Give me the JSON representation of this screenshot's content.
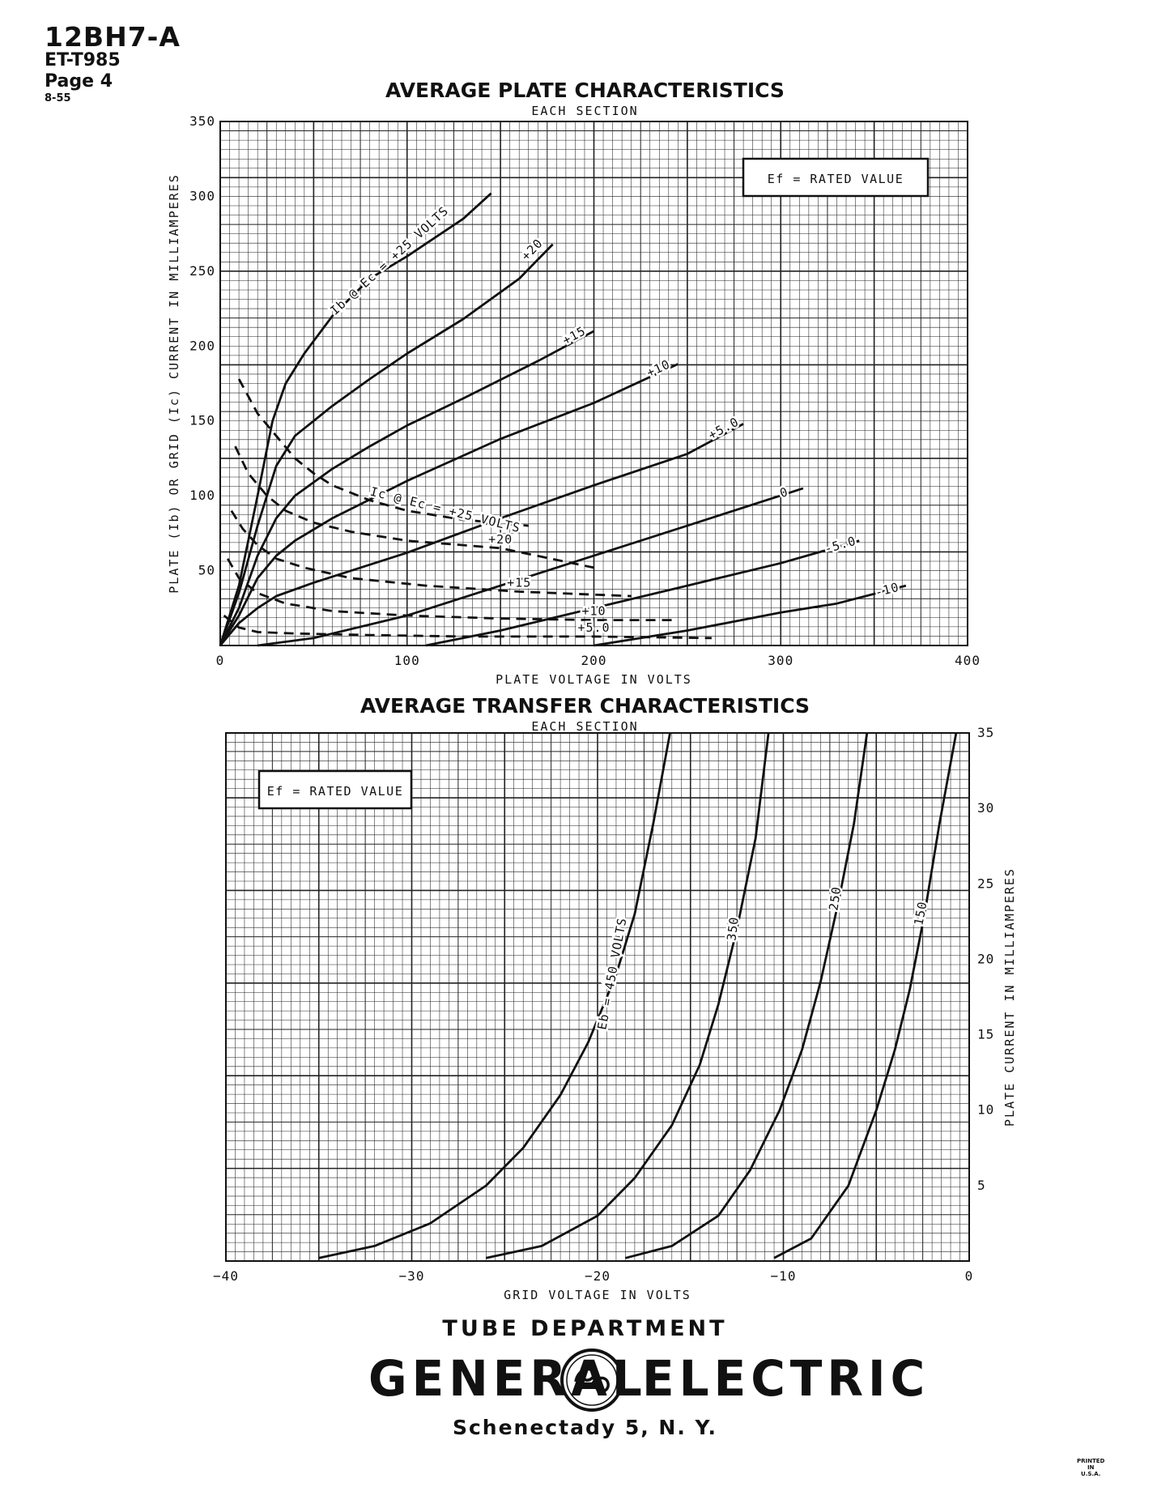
{
  "header": {
    "model": "12BH7-A",
    "code": "ET-T985",
    "page": "Page 4",
    "date": "8-55"
  },
  "chart_data": [
    {
      "type": "line",
      "title": "AVERAGE PLATE CHARACTERISTICS",
      "subtitle": "EACH SECTION",
      "xlabel": "PLATE VOLTAGE IN VOLTS",
      "ylabel": "PLATE (Ib) OR GRID (Ic) CURRENT IN MILLIAMPERES",
      "xlim": [
        0,
        400
      ],
      "ylim": [
        0,
        350
      ],
      "xticks": [
        0,
        100,
        200,
        300,
        400
      ],
      "yticks": [
        50,
        100,
        150,
        200,
        250,
        300,
        350
      ],
      "grid": true,
      "note": "Ef = RATED VALUE",
      "series": [
        {
          "name": "Ib @ Ec = +25 VOLTS",
          "label": "Ib @ Ec = +25 VOLTS",
          "style": "solid",
          "x": [
            0,
            10,
            20,
            28,
            35,
            45,
            60,
            80,
            100,
            130,
            145
          ],
          "y": [
            0,
            40,
            100,
            150,
            175,
            195,
            220,
            245,
            260,
            285,
            302
          ]
        },
        {
          "name": "+20",
          "label": "+20",
          "style": "solid",
          "x": [
            0,
            10,
            20,
            30,
            40,
            60,
            80,
            100,
            130,
            160,
            178
          ],
          "y": [
            0,
            35,
            80,
            120,
            140,
            160,
            178,
            195,
            218,
            245,
            268
          ]
        },
        {
          "name": "+15",
          "label": "+15",
          "style": "solid",
          "x": [
            0,
            10,
            20,
            30,
            40,
            60,
            80,
            100,
            130,
            170,
            200
          ],
          "y": [
            0,
            25,
            60,
            85,
            100,
            118,
            133,
            147,
            165,
            190,
            210
          ]
        },
        {
          "name": "+10",
          "label": "+10",
          "style": "solid",
          "x": [
            0,
            10,
            20,
            30,
            40,
            60,
            100,
            150,
            200,
            245
          ],
          "y": [
            0,
            20,
            45,
            60,
            70,
            85,
            110,
            138,
            162,
            188
          ]
        },
        {
          "name": "+5.0",
          "label": "+5.0",
          "style": "solid",
          "x": [
            0,
            10,
            20,
            30,
            50,
            100,
            150,
            200,
            250,
            280
          ],
          "y": [
            0,
            15,
            25,
            33,
            42,
            62,
            85,
            107,
            128,
            148
          ]
        },
        {
          "name": "0",
          "label": "0",
          "style": "solid",
          "x": [
            20,
            50,
            100,
            150,
            200,
            250,
            312
          ],
          "y": [
            0,
            5,
            20,
            40,
            60,
            80,
            105
          ]
        },
        {
          "name": "-5.0",
          "label": "-5.0",
          "style": "solid",
          "x": [
            110,
            150,
            200,
            250,
            300,
            342
          ],
          "y": [
            0,
            10,
            25,
            40,
            55,
            70
          ]
        },
        {
          "name": "-10",
          "label": "-10",
          "style": "solid",
          "x": [
            200,
            250,
            300,
            330,
            367
          ],
          "y": [
            0,
            10,
            22,
            28,
            40
          ]
        },
        {
          "name": "Ic @ Ec = +25 VOLTS",
          "label": "Ic @ Ec = +25 VOLTS",
          "style": "dashed",
          "x": [
            10,
            20,
            30,
            40,
            50,
            60,
            80,
            100,
            130,
            165
          ],
          "y": [
            178,
            155,
            140,
            125,
            115,
            107,
            97,
            90,
            84,
            80
          ]
        },
        {
          "name": "Ic +20",
          "label": "+20",
          "style": "dashed",
          "x": [
            8,
            15,
            25,
            35,
            50,
            70,
            100,
            150,
            200
          ],
          "y": [
            133,
            115,
            100,
            90,
            82,
            76,
            70,
            65,
            52
          ]
        },
        {
          "name": "Ic +15",
          "label": "+15",
          "style": "dashed",
          "x": [
            6,
            12,
            20,
            30,
            45,
            70,
            110,
            160,
            220
          ],
          "y": [
            90,
            78,
            67,
            58,
            52,
            45,
            40,
            36,
            33
          ]
        },
        {
          "name": "Ic +10",
          "label": "+10",
          "style": "dashed",
          "x": [
            4,
            10,
            20,
            35,
            60,
            100,
            150,
            200,
            243
          ],
          "y": [
            58,
            45,
            35,
            28,
            23,
            20,
            18,
            17,
            17
          ]
        },
        {
          "name": "Ic +5.0",
          "label": "+5.0",
          "style": "dashed",
          "x": [
            2,
            10,
            20,
            40,
            80,
            130,
            200,
            263
          ],
          "y": [
            20,
            12,
            9,
            8,
            7,
            6,
            6,
            5
          ]
        }
      ]
    },
    {
      "type": "line",
      "title": "AVERAGE TRANSFER CHARACTERISTICS",
      "subtitle": "EACH SECTION",
      "xlabel": "GRID VOLTAGE IN VOLTS",
      "ylabel": "PLATE CURRENT IN MILLIAMPERES",
      "xlim": [
        -40,
        0
      ],
      "ylim": [
        0,
        35
      ],
      "xticks": [
        -40,
        -30,
        -20,
        -10,
        0
      ],
      "yticks": [
        5,
        10,
        15,
        20,
        25,
        30,
        35
      ],
      "grid": true,
      "note": "Ef = RATED VALUE",
      "series": [
        {
          "name": "Eb = 450 VOLTS",
          "label": "Eb = 450 VOLTS",
          "x": [
            -35,
            -32,
            -29,
            -26,
            -24,
            -22,
            -20.5,
            -19,
            -18,
            -17,
            -16.1
          ],
          "y": [
            0.2,
            1,
            2.5,
            5,
            7.5,
            11,
            14.5,
            19,
            23,
            29,
            35
          ]
        },
        {
          "name": "350",
          "label": "350",
          "x": [
            -26,
            -23,
            -20,
            -18,
            -16,
            -14.5,
            -13.5,
            -12.5,
            -11.5,
            -10.8
          ],
          "y": [
            0.2,
            1,
            3,
            5.5,
            9,
            13,
            17,
            22,
            28,
            35
          ]
        },
        {
          "name": "250",
          "label": "250",
          "x": [
            -18.5,
            -16,
            -13.5,
            -11.8,
            -10.2,
            -9,
            -8,
            -7,
            -6.2,
            -5.5
          ],
          "y": [
            0.2,
            1,
            3,
            6,
            10,
            14,
            18.5,
            24,
            29,
            35
          ]
        },
        {
          "name": "150",
          "label": "150",
          "x": [
            -10.5,
            -8.5,
            -6.5,
            -5,
            -4,
            -3.2,
            -2.4,
            -1.6,
            -0.7
          ],
          "y": [
            0.2,
            1.5,
            5,
            10,
            14,
            18,
            23,
            29,
            35
          ]
        }
      ]
    }
  ],
  "footer": {
    "department": "TUBE DEPARTMENT",
    "brand_left": "GENERAL",
    "brand_right": "ELECTRIC",
    "city": "Schenectady 5, N. Y."
  }
}
